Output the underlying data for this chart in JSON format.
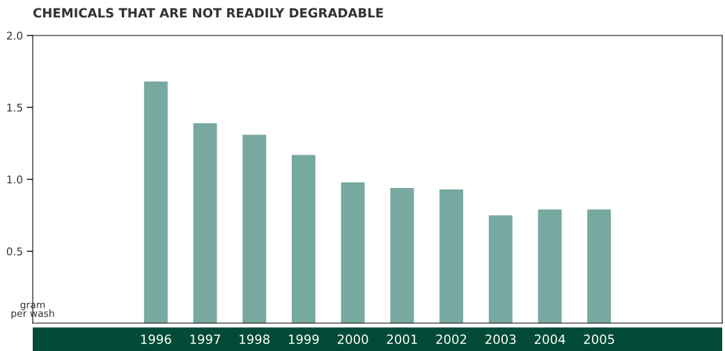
{
  "chart_data": {
    "type": "bar",
    "title": "CHEMICALS THAT ARE NOT READILY DEGRADABLE",
    "ylabel": "gram\nper wash",
    "categories": [
      null,
      null,
      "1996",
      "1997",
      "1998",
      "1999",
      "2000",
      "2001",
      "2002",
      "2003",
      "2004",
      "2005",
      null,
      null
    ],
    "values": [
      null,
      null,
      1.68,
      1.39,
      1.31,
      1.17,
      0.98,
      0.94,
      0.93,
      0.75,
      0.79,
      0.79,
      null,
      null
    ],
    "color": "#77a9a0",
    "ylim": [
      0,
      2
    ],
    "yticks": [
      {
        "value": 0.5,
        "label": "0.5"
      },
      {
        "value": 1,
        "label": "1.0"
      },
      {
        "value": 1.5,
        "label": "1.5"
      },
      {
        "value": 2,
        "label": "2.0"
      }
    ],
    "grid": false
  }
}
